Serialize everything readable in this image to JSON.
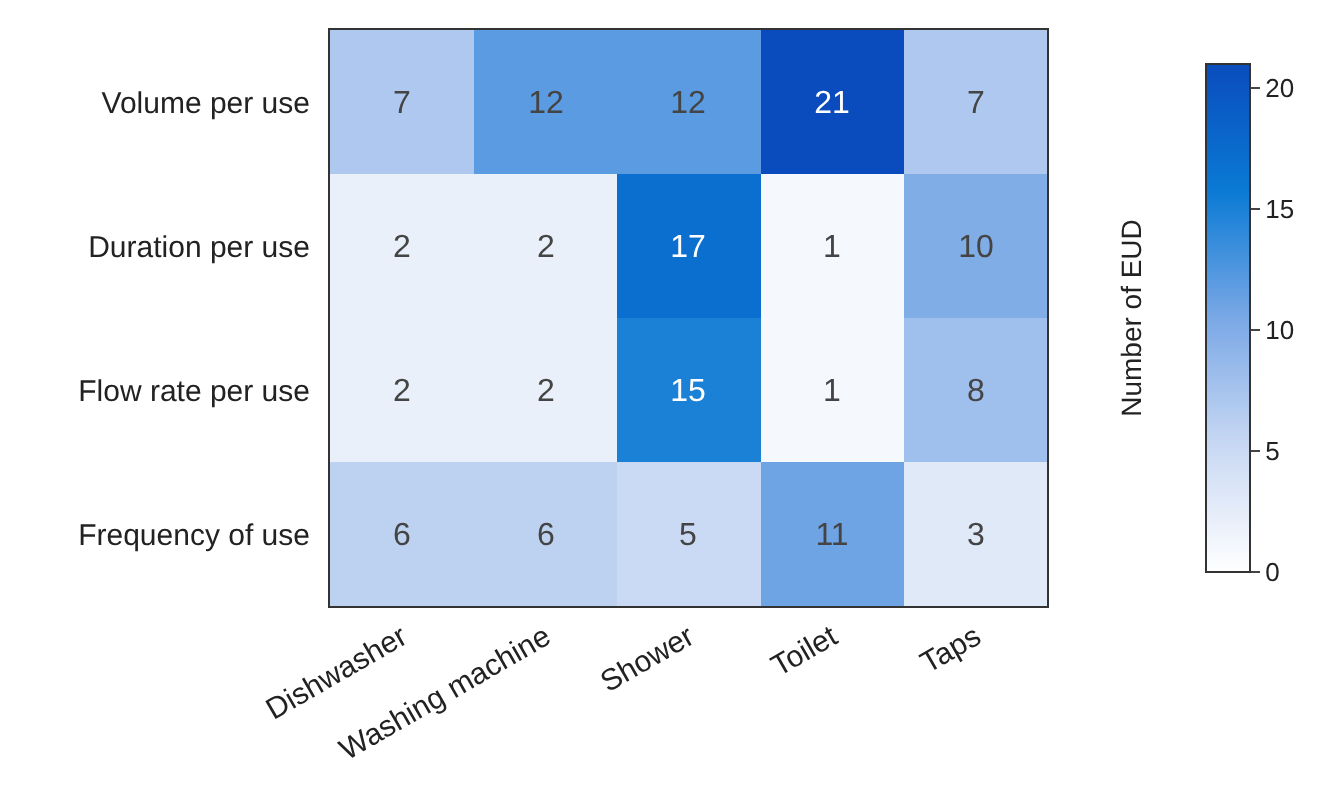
{
  "chart_data": {
    "type": "heatmap",
    "categories": [
      "Dishwasher",
      "Washing machine",
      "Shower",
      "Toilet",
      "Taps"
    ],
    "y_categories": [
      "Volume per use",
      "Duration per use",
      "Flow rate per use",
      "Frequency of use"
    ],
    "cells": [
      [
        7,
        12,
        12,
        21,
        7
      ],
      [
        2,
        2,
        17,
        1,
        10
      ],
      [
        2,
        2,
        15,
        1,
        8
      ],
      [
        6,
        6,
        5,
        11,
        3
      ]
    ],
    "data_labels": true,
    "clabel": "Number of EUD",
    "clim": [
      0,
      21
    ],
    "cticks": [
      0,
      5,
      10,
      15,
      20
    ]
  }
}
